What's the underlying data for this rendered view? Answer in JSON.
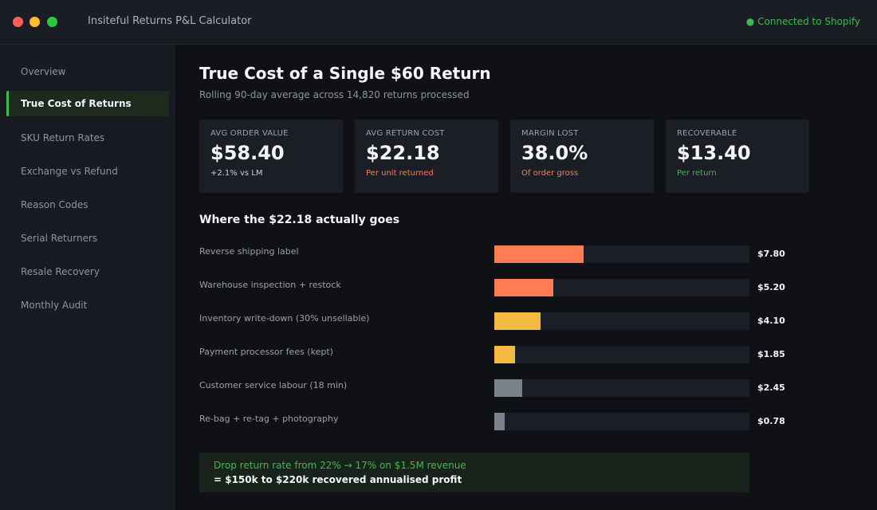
{
  "window": {
    "title": "Insiteful Returns P&L Calculator",
    "connection_status": "● Connected to Shopify",
    "colors": {
      "red": "#ff5f57",
      "yellow": "#febc2e",
      "green": "#28c840"
    }
  },
  "sidebar": {
    "items": [
      {
        "label": "Overview",
        "active": false
      },
      {
        "label": "True Cost of Returns",
        "active": true
      },
      {
        "label": "SKU Return Rates",
        "active": false
      },
      {
        "label": "Exchange vs Refund",
        "active": false
      },
      {
        "label": "Reason Codes",
        "active": false
      },
      {
        "label": "Serial Returners",
        "active": false
      },
      {
        "label": "Resale Recovery",
        "active": false
      },
      {
        "label": "Monthly Audit",
        "active": false
      }
    ]
  },
  "main": {
    "title": "True Cost of a Single $60 Return",
    "subtitle": "Rolling 90-day average across 14,820 returns processed",
    "kpis": [
      {
        "label": "AVG ORDER VALUE",
        "value": "$58.40",
        "note": "+2.1% vs LM",
        "note_color": "#c9cdd4"
      },
      {
        "label": "AVG RETURN COST",
        "value": "$22.18",
        "note": "Per unit returned",
        "note_color": "#ff7b54"
      },
      {
        "label": "MARGIN LOST",
        "value": "38.0%",
        "note": "Of order gross",
        "note_color": "#ff7b54"
      },
      {
        "label": "RECOVERABLE",
        "value": "$13.40",
        "note": "Per return",
        "note_color": "#3fb950"
      }
    ],
    "breakdown_title": "Where the $22.18 actually goes",
    "breakdown": [
      {
        "label": "Reverse shipping label",
        "value": "$7.80",
        "amount": 7.8,
        "fill_fraction": 0.35,
        "color": "#ff7b54"
      },
      {
        "label": "Warehouse inspection + restock",
        "value": "$5.20",
        "amount": 5.2,
        "fill_fraction": 0.23,
        "color": "#ff7b54"
      },
      {
        "label": "Inventory write-down (30% unsellable)",
        "value": "$4.10",
        "amount": 4.1,
        "fill_fraction": 0.18,
        "color": "#f4b942"
      },
      {
        "label": "Payment processor fees (kept)",
        "value": "$1.85",
        "amount": 1.85,
        "fill_fraction": 0.08,
        "color": "#f4b942"
      },
      {
        "label": "Customer service labour (18 min)",
        "value": "$2.45",
        "amount": 2.45,
        "fill_fraction": 0.11,
        "color": "#7c828c"
      },
      {
        "label": "Re-bag + re-tag + photography",
        "value": "$0.78",
        "amount": 0.78,
        "fill_fraction": 0.04,
        "color": "#7c828c"
      }
    ],
    "callout": {
      "line1": "Drop return rate from 22% → 17% on $1.5M revenue",
      "line2": "= $150k to $220k recovered annualised profit"
    }
  }
}
